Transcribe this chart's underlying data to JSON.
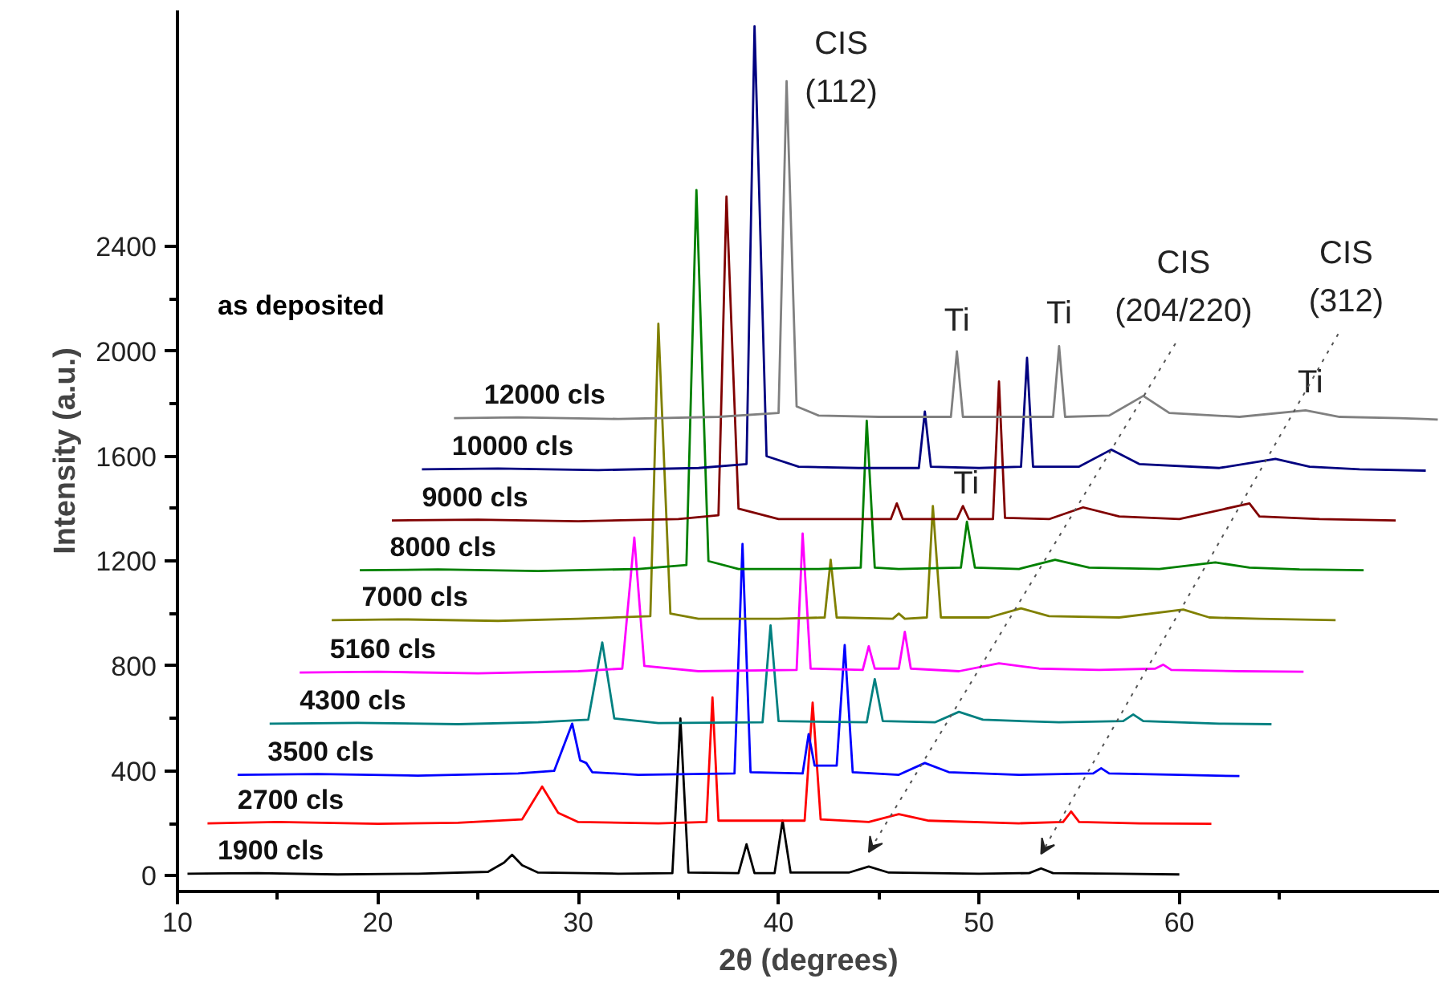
{
  "chart_data": {
    "type": "line",
    "xlabel": "2θ (degrees)",
    "ylabel": "Intensity (a.u.)",
    "xlim": [
      10,
      73
    ],
    "ylim": [
      -60,
      3300
    ],
    "xticks": [
      10,
      {
        "value": 15,
        "label": null
      },
      20,
      {
        "value": 25,
        "label": null
      },
      30,
      {
        "value": 35,
        "label": null
      },
      40,
      {
        "value": 45,
        "label": null
      },
      50,
      {
        "value": 55,
        "label": null
      },
      60,
      {
        "value": 65,
        "label": null
      }
    ],
    "yticks": [
      0,
      {
        "value": 200,
        "label": null
      },
      400,
      {
        "value": 600,
        "label": null
      },
      800,
      {
        "value": 1000,
        "label": null
      },
      1200,
      {
        "value": 1400,
        "label": null
      },
      1600,
      {
        "value": 1800,
        "label": null
      },
      2000,
      {
        "value": 2200,
        "label": null
      },
      2400
    ],
    "grid": false,
    "line_style": "solid",
    "series": [
      {
        "name": "1900 cls",
        "color": "#000000",
        "x": [
          10.5,
          14,
          18,
          22,
          25.5,
          26.3,
          26.7,
          27.2,
          28,
          32,
          34.7,
          35.1,
          35.5,
          38.0,
          38.4,
          38.8,
          39.8,
          40.2,
          40.6,
          43.5,
          44.5,
          45.5,
          50,
          52.5,
          53.1,
          53.7,
          57,
          60
        ],
        "values": [
          8,
          10,
          5,
          8,
          15,
          50,
          80,
          40,
          12,
          8,
          10,
          600,
          12,
          10,
          120,
          10,
          10,
          210,
          12,
          12,
          35,
          12,
          8,
          10,
          28,
          10,
          8,
          5
        ]
      },
      {
        "name": "2700 cls",
        "color": "#ff0000",
        "x": [
          11.5,
          15,
          20,
          24,
          27.2,
          28.2,
          29,
          30,
          34,
          36.4,
          36.7,
          37.0,
          41.3,
          41.7,
          42.1,
          44.5,
          46,
          47.5,
          52,
          54.2,
          54.6,
          55,
          58,
          61.6
        ],
        "values": [
          200,
          205,
          198,
          202,
          215,
          340,
          240,
          205,
          200,
          205,
          680,
          210,
          210,
          660,
          215,
          205,
          235,
          210,
          200,
          205,
          245,
          205,
          200,
          198
        ]
      },
      {
        "name": "3500 cls",
        "color": "#0000ff",
        "x": [
          13,
          17,
          22,
          27,
          28.8,
          29.7,
          30.1,
          30.4,
          30.7,
          33,
          37.8,
          38.2,
          38.6,
          41.2,
          41.5,
          41.8,
          42.9,
          43.3,
          43.7,
          46,
          47.3,
          48.5,
          52,
          55.7,
          56.1,
          56.5,
          60,
          63
        ],
        "values": [
          385,
          388,
          382,
          390,
          400,
          580,
          440,
          430,
          395,
          385,
          390,
          1265,
          395,
          390,
          540,
          420,
          420,
          880,
          395,
          385,
          430,
          395,
          385,
          390,
          410,
          390,
          385,
          380
        ]
      },
      {
        "name": "4300 cls",
        "color": "#008080",
        "x": [
          14.6,
          19,
          24,
          28,
          30.5,
          31.2,
          31.8,
          34,
          39.2,
          39.6,
          40,
          44.4,
          44.8,
          45.2,
          47.8,
          49,
          50.2,
          54,
          57.2,
          57.7,
          58.2,
          62,
          64.6
        ],
        "values": [
          580,
          583,
          578,
          585,
          595,
          890,
          600,
          582,
          585,
          955,
          590,
          585,
          750,
          590,
          585,
          625,
          595,
          585,
          590,
          615,
          590,
          580,
          578
        ]
      },
      {
        "name": "5160 cls",
        "color": "#ff00ff",
        "x": [
          16.1,
          20,
          25,
          30,
          32.2,
          32.8,
          33.3,
          36,
          40.9,
          41.2,
          41.6,
          44.2,
          44.5,
          44.8,
          46,
          46.3,
          46.6,
          49,
          51,
          53,
          56,
          58.8,
          59.2,
          59.6,
          63,
          66.2
        ],
        "values": [
          775,
          778,
          772,
          780,
          790,
          1290,
          800,
          780,
          785,
          1305,
          790,
          785,
          875,
          790,
          790,
          930,
          790,
          780,
          810,
          790,
          785,
          790,
          805,
          785,
          780,
          778
        ]
      },
      {
        "name": "7000 cls",
        "color": "#808000",
        "x": [
          17.7,
          21,
          26,
          30,
          33.6,
          34.0,
          34.6,
          36,
          40,
          42.3,
          42.6,
          42.9,
          45.7,
          46,
          46.3,
          47.4,
          47.7,
          48.1,
          50.5,
          52.1,
          53.5,
          57,
          60.2,
          61.5,
          64,
          67.8
        ],
        "values": [
          975,
          978,
          972,
          980,
          990,
          2105,
          1000,
          980,
          980,
          985,
          1205,
          985,
          980,
          1000,
          980,
          985,
          1410,
          985,
          985,
          1020,
          990,
          985,
          1015,
          985,
          980,
          975
        ]
      },
      {
        "name": "8000 cls",
        "color": "#008000",
        "x": [
          19.1,
          23,
          28,
          33,
          35.4,
          35.9,
          36.5,
          38,
          42,
          44.1,
          44.4,
          44.8,
          46,
          49.1,
          49.4,
          49.8,
          52,
          53.8,
          55.5,
          59,
          61.8,
          63.5,
          66,
          69.2
        ],
        "values": [
          1165,
          1168,
          1162,
          1170,
          1185,
          2615,
          1200,
          1170,
          1170,
          1175,
          1735,
          1175,
          1170,
          1175,
          1350,
          1175,
          1170,
          1205,
          1175,
          1170,
          1195,
          1175,
          1168,
          1165
        ]
      },
      {
        "name": "9000 cls",
        "color": "#800000",
        "x": [
          20.7,
          25,
          30,
          35,
          37.0,
          37.4,
          38.0,
          40,
          43,
          45.6,
          45.9,
          46.2,
          48.9,
          49.2,
          49.5,
          50.7,
          51.0,
          51.3,
          53.5,
          55.2,
          57,
          60,
          63.5,
          64,
          67,
          70.8
        ],
        "values": [
          1355,
          1358,
          1352,
          1360,
          1375,
          2590,
          1400,
          1360,
          1360,
          1360,
          1420,
          1360,
          1360,
          1410,
          1360,
          1360,
          1885,
          1365,
          1360,
          1405,
          1370,
          1360,
          1420,
          1370,
          1360,
          1355
        ]
      },
      {
        "name": "10000 cls",
        "color": "#000080",
        "x": [
          22.2,
          26,
          31,
          36,
          38.4,
          38.8,
          39.4,
          41,
          44,
          47.0,
          47.3,
          47.6,
          50,
          52.1,
          52.4,
          52.7,
          55,
          56.6,
          58,
          62,
          64.8,
          66.5,
          69,
          72.3
        ],
        "values": [
          1550,
          1553,
          1547,
          1555,
          1570,
          3240,
          1600,
          1560,
          1555,
          1555,
          1770,
          1560,
          1555,
          1560,
          1975,
          1560,
          1560,
          1625,
          1570,
          1555,
          1590,
          1560,
          1550,
          1545
        ]
      },
      {
        "name": "12000 cls",
        "color": "#808080",
        "x": [
          23.8,
          27,
          32,
          37,
          40.0,
          40.4,
          40.9,
          42,
          45,
          48.6,
          48.9,
          49.2,
          51.5,
          53.7,
          54.0,
          54.3,
          56.5,
          58.2,
          59.5,
          63,
          66.3,
          68,
          71,
          72.9
        ],
        "values": [
          1745,
          1748,
          1742,
          1750,
          1765,
          3030,
          1790,
          1755,
          1750,
          1750,
          2000,
          1750,
          1750,
          1750,
          2020,
          1750,
          1755,
          1830,
          1765,
          1750,
          1775,
          1750,
          1745,
          1740
        ]
      }
    ],
    "annotations": [
      "as deposited",
      {
        "text": "CIS\n(112)",
        "x": 40.4,
        "y": 3030
      },
      {
        "text": "Ti",
        "x": 48.9,
        "y": 2000
      },
      {
        "text": "Ti",
        "x": 54.0,
        "y": 2020
      },
      {
        "text": "CIS\n(204/220)",
        "x": 44.5,
        "y": 35
      },
      {
        "text": "CIS\n(312)",
        "x": 53.1,
        "y": 28
      },
      {
        "text": "Ti",
        "x": 66.3,
        "y": 1775
      },
      {
        "text": "Ti",
        "x": 49.2,
        "y": 1410
      }
    ]
  }
}
